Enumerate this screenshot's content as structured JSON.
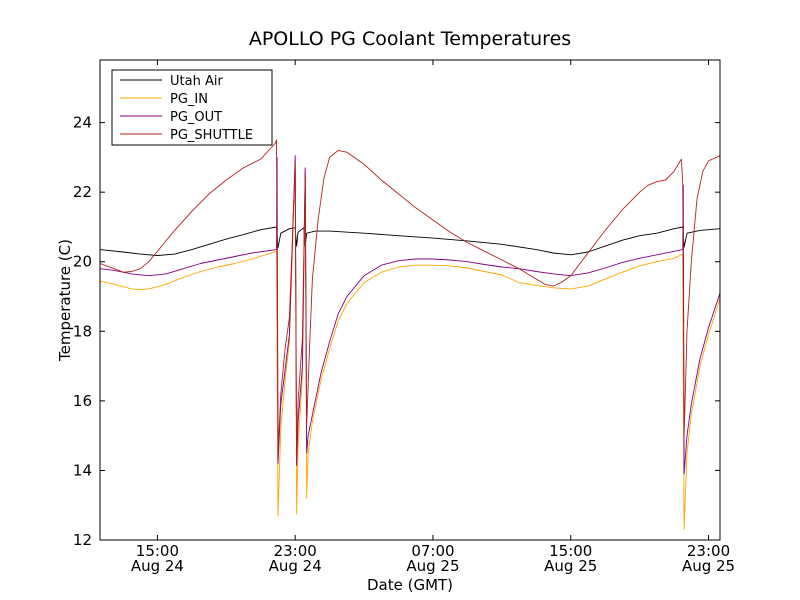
{
  "chart_data": {
    "type": "line",
    "title": "APOLLO PG Coolant Temperatures",
    "xlabel": "Date (GMT)",
    "ylabel": "Temperature (C)",
    "x_unit": "datetime",
    "xlim": [
      "2014-08-24T11:40",
      "2014-08-25T23:40"
    ],
    "ylim": [
      12,
      25.8
    ],
    "yticks": [
      12,
      14,
      16,
      18,
      20,
      22,
      24
    ],
    "xticks": [
      {
        "x": "2014-08-24T15:00",
        "line1": "15:00",
        "line2": "Aug 24"
      },
      {
        "x": "2014-08-24T23:00",
        "line1": "23:00",
        "line2": "Aug 24"
      },
      {
        "x": "2014-08-25T07:00",
        "line1": "07:00",
        "line2": "Aug 25"
      },
      {
        "x": "2014-08-25T15:00",
        "line1": "15:00",
        "line2": "Aug 25"
      },
      {
        "x": "2014-08-25T23:00",
        "line1": "23:00",
        "line2": "Aug 25"
      }
    ],
    "grid": false,
    "legend": "top-left",
    "series": [
      {
        "name": "Utah Air",
        "color": "#000000",
        "points": [
          [
            "2014-08-24T11:40",
            20.35
          ],
          [
            "2014-08-24T13:00",
            20.28
          ],
          [
            "2014-08-24T14:00",
            20.22
          ],
          [
            "2014-08-24T15:00",
            20.18
          ],
          [
            "2014-08-24T16:00",
            20.22
          ],
          [
            "2014-08-24T17:00",
            20.35
          ],
          [
            "2014-08-24T18:00",
            20.5
          ],
          [
            "2014-08-24T19:00",
            20.65
          ],
          [
            "2014-08-24T20:00",
            20.78
          ],
          [
            "2014-08-24T21:00",
            20.92
          ],
          [
            "2014-08-24T21:55",
            21.0
          ],
          [
            "2014-08-24T22:00",
            20.4
          ],
          [
            "2014-08-24T22:10",
            20.82
          ],
          [
            "2014-08-24T22:40",
            20.95
          ],
          [
            "2014-08-24T23:00",
            20.98
          ],
          [
            "2014-08-24T23:05",
            20.45
          ],
          [
            "2014-08-24T23:10",
            20.85
          ],
          [
            "2014-08-24T23:30",
            20.98
          ],
          [
            "2014-08-24T23:35",
            20.45
          ],
          [
            "2014-08-24T23:40",
            20.82
          ],
          [
            "2014-08-25T00:10",
            20.88
          ],
          [
            "2014-08-25T01:00",
            20.88
          ],
          [
            "2014-08-25T03:00",
            20.82
          ],
          [
            "2014-08-25T05:00",
            20.75
          ],
          [
            "2014-08-25T07:00",
            20.68
          ],
          [
            "2014-08-25T09:00",
            20.6
          ],
          [
            "2014-08-25T11:00",
            20.5
          ],
          [
            "2014-08-25T13:00",
            20.35
          ],
          [
            "2014-08-25T14:00",
            20.25
          ],
          [
            "2014-08-25T15:00",
            20.2
          ],
          [
            "2014-08-25T16:00",
            20.28
          ],
          [
            "2014-08-25T17:00",
            20.45
          ],
          [
            "2014-08-25T18:00",
            20.62
          ],
          [
            "2014-08-25T19:00",
            20.75
          ],
          [
            "2014-08-25T20:00",
            20.82
          ],
          [
            "2014-08-25T21:00",
            20.95
          ],
          [
            "2014-08-25T21:30",
            21.0
          ],
          [
            "2014-08-25T21:35",
            20.42
          ],
          [
            "2014-08-25T21:45",
            20.82
          ],
          [
            "2014-08-25T22:30",
            20.9
          ],
          [
            "2014-08-25T23:40",
            20.95
          ]
        ]
      },
      {
        "name": "PG_IN",
        "color": "#ffa500",
        "points": [
          [
            "2014-08-24T11:40",
            19.45
          ],
          [
            "2014-08-24T12:30",
            19.35
          ],
          [
            "2014-08-24T13:30",
            19.22
          ],
          [
            "2014-08-24T14:00",
            19.2
          ],
          [
            "2014-08-24T14:30",
            19.22
          ],
          [
            "2014-08-24T15:30",
            19.35
          ],
          [
            "2014-08-24T16:30",
            19.55
          ],
          [
            "2014-08-24T17:30",
            19.72
          ],
          [
            "2014-08-24T18:30",
            19.85
          ],
          [
            "2014-08-24T19:30",
            19.95
          ],
          [
            "2014-08-24T20:30",
            20.08
          ],
          [
            "2014-08-24T21:55",
            20.3
          ],
          [
            "2014-08-24T22:00",
            12.7
          ],
          [
            "2014-08-24T22:10",
            15.2
          ],
          [
            "2014-08-24T22:25",
            16.6
          ],
          [
            "2014-08-24T22:40",
            17.7
          ],
          [
            "2014-08-24T23:00",
            22.9
          ],
          [
            "2014-08-24T23:05",
            12.75
          ],
          [
            "2014-08-24T23:10",
            14.7
          ],
          [
            "2014-08-24T23:25",
            16.7
          ],
          [
            "2014-08-24T23:35",
            22.6
          ],
          [
            "2014-08-24T23:40",
            13.2
          ],
          [
            "2014-08-24T23:45",
            14.5
          ],
          [
            "2014-08-25T00:00",
            15.4
          ],
          [
            "2014-08-25T00:30",
            16.6
          ],
          [
            "2014-08-25T01:00",
            17.5
          ],
          [
            "2014-08-25T01:30",
            18.3
          ],
          [
            "2014-08-25T02:00",
            18.8
          ],
          [
            "2014-08-25T03:00",
            19.4
          ],
          [
            "2014-08-25T04:00",
            19.7
          ],
          [
            "2014-08-25T05:00",
            19.85
          ],
          [
            "2014-08-25T06:00",
            19.9
          ],
          [
            "2014-08-25T07:00",
            19.9
          ],
          [
            "2014-08-25T08:00",
            19.88
          ],
          [
            "2014-08-25T09:00",
            19.82
          ],
          [
            "2014-08-25T10:00",
            19.72
          ],
          [
            "2014-08-25T11:00",
            19.62
          ],
          [
            "2014-08-25T12:00",
            19.4
          ],
          [
            "2014-08-25T13:00",
            19.32
          ],
          [
            "2014-08-25T14:00",
            19.25
          ],
          [
            "2014-08-25T15:00",
            19.22
          ],
          [
            "2014-08-25T16:00",
            19.3
          ],
          [
            "2014-08-25T17:00",
            19.5
          ],
          [
            "2014-08-25T18:00",
            19.7
          ],
          [
            "2014-08-25T19:00",
            19.88
          ],
          [
            "2014-08-25T20:00",
            20.0
          ],
          [
            "2014-08-25T21:00",
            20.1
          ],
          [
            "2014-08-25T21:30",
            20.22
          ],
          [
            "2014-08-25T21:35",
            12.3
          ],
          [
            "2014-08-25T21:45",
            14.5
          ],
          [
            "2014-08-25T22:00",
            15.6
          ],
          [
            "2014-08-25T22:30",
            17.0
          ],
          [
            "2014-08-25T23:00",
            17.9
          ],
          [
            "2014-08-25T23:40",
            18.95
          ]
        ]
      },
      {
        "name": "PG_OUT",
        "color": "#800080",
        "points": [
          [
            "2014-08-24T11:40",
            19.8
          ],
          [
            "2014-08-24T12:30",
            19.75
          ],
          [
            "2014-08-24T13:30",
            19.65
          ],
          [
            "2014-08-24T14:30",
            19.6
          ],
          [
            "2014-08-24T15:30",
            19.65
          ],
          [
            "2014-08-24T16:30",
            19.8
          ],
          [
            "2014-08-24T17:30",
            19.95
          ],
          [
            "2014-08-24T18:30",
            20.05
          ],
          [
            "2014-08-24T19:30",
            20.15
          ],
          [
            "2014-08-24T20:30",
            20.25
          ],
          [
            "2014-08-24T21:55",
            20.35
          ],
          [
            "2014-08-24T21:57",
            23.0
          ],
          [
            "2014-08-24T22:00",
            14.2
          ],
          [
            "2014-08-24T22:10",
            15.9
          ],
          [
            "2014-08-24T22:25",
            16.9
          ],
          [
            "2014-08-24T22:40",
            17.9
          ],
          [
            "2014-08-24T23:00",
            23.05
          ],
          [
            "2014-08-24T23:05",
            14.15
          ],
          [
            "2014-08-24T23:10",
            15.4
          ],
          [
            "2014-08-24T23:25",
            17.0
          ],
          [
            "2014-08-24T23:35",
            22.7
          ],
          [
            "2014-08-24T23:40",
            14.5
          ],
          [
            "2014-08-24T23:45",
            15.0
          ],
          [
            "2014-08-25T00:00",
            15.6
          ],
          [
            "2014-08-25T00:30",
            16.8
          ],
          [
            "2014-08-25T01:00",
            17.7
          ],
          [
            "2014-08-25T01:30",
            18.5
          ],
          [
            "2014-08-25T02:00",
            19.0
          ],
          [
            "2014-08-25T03:00",
            19.6
          ],
          [
            "2014-08-25T04:00",
            19.9
          ],
          [
            "2014-08-25T05:00",
            20.03
          ],
          [
            "2014-08-25T06:00",
            20.08
          ],
          [
            "2014-08-25T07:00",
            20.08
          ],
          [
            "2014-08-25T08:00",
            20.05
          ],
          [
            "2014-08-25T09:00",
            20.0
          ],
          [
            "2014-08-25T10:00",
            19.92
          ],
          [
            "2014-08-25T11:00",
            19.85
          ],
          [
            "2014-08-25T12:00",
            19.8
          ],
          [
            "2014-08-25T13:00",
            19.72
          ],
          [
            "2014-08-25T14:00",
            19.65
          ],
          [
            "2014-08-25T15:00",
            19.6
          ],
          [
            "2014-08-25T16:00",
            19.68
          ],
          [
            "2014-08-25T17:00",
            19.82
          ],
          [
            "2014-08-25T18:00",
            19.98
          ],
          [
            "2014-08-25T19:00",
            20.1
          ],
          [
            "2014-08-25T20:00",
            20.2
          ],
          [
            "2014-08-25T21:00",
            20.3
          ],
          [
            "2014-08-25T21:30",
            20.35
          ],
          [
            "2014-08-25T21:32",
            22.2
          ],
          [
            "2014-08-25T21:35",
            13.9
          ],
          [
            "2014-08-25T21:45",
            15.0
          ],
          [
            "2014-08-25T22:00",
            15.9
          ],
          [
            "2014-08-25T22:30",
            17.2
          ],
          [
            "2014-08-25T23:00",
            18.1
          ],
          [
            "2014-08-25T23:40",
            19.1
          ]
        ]
      },
      {
        "name": "PG_SHUTTLE",
        "color": "#b22222",
        "points": [
          [
            "2014-08-24T11:40",
            19.95
          ],
          [
            "2014-08-24T12:30",
            19.8
          ],
          [
            "2014-08-24T13:00",
            19.7
          ],
          [
            "2014-08-24T13:30",
            19.72
          ],
          [
            "2014-08-24T14:00",
            19.8
          ],
          [
            "2014-08-24T14:30",
            20.0
          ],
          [
            "2014-08-24T15:00",
            20.3
          ],
          [
            "2014-08-24T16:00",
            20.9
          ],
          [
            "2014-08-24T17:00",
            21.45
          ],
          [
            "2014-08-24T18:00",
            21.95
          ],
          [
            "2014-08-24T19:00",
            22.35
          ],
          [
            "2014-08-24T20:00",
            22.7
          ],
          [
            "2014-08-24T21:00",
            22.95
          ],
          [
            "2014-08-24T21:50",
            23.4
          ],
          [
            "2014-08-24T21:55",
            23.5
          ],
          [
            "2014-08-24T22:00",
            14.5
          ],
          [
            "2014-08-24T22:10",
            16.2
          ],
          [
            "2014-08-24T22:25",
            17.5
          ],
          [
            "2014-08-24T22:40",
            18.4
          ],
          [
            "2014-08-24T23:00",
            22.8
          ],
          [
            "2014-08-24T23:05",
            14.4
          ],
          [
            "2014-08-24T23:10",
            16.0
          ],
          [
            "2014-08-24T23:25",
            17.8
          ],
          [
            "2014-08-24T23:35",
            22.5
          ],
          [
            "2014-08-24T23:40",
            15.3
          ],
          [
            "2014-08-24T23:50",
            17.5
          ],
          [
            "2014-08-25T00:00",
            19.5
          ],
          [
            "2014-08-25T00:20",
            21.2
          ],
          [
            "2014-08-25T00:40",
            22.4
          ],
          [
            "2014-08-25T01:00",
            23.0
          ],
          [
            "2014-08-25T01:30",
            23.2
          ],
          [
            "2014-08-25T02:00",
            23.15
          ],
          [
            "2014-08-25T03:00",
            22.8
          ],
          [
            "2014-08-25T04:00",
            22.35
          ],
          [
            "2014-08-25T05:00",
            21.95
          ],
          [
            "2014-08-25T06:00",
            21.55
          ],
          [
            "2014-08-25T07:00",
            21.2
          ],
          [
            "2014-08-25T08:00",
            20.85
          ],
          [
            "2014-08-25T09:00",
            20.55
          ],
          [
            "2014-08-25T10:00",
            20.3
          ],
          [
            "2014-08-25T11:00",
            20.05
          ],
          [
            "2014-08-25T12:00",
            19.8
          ],
          [
            "2014-08-25T13:00",
            19.5
          ],
          [
            "2014-08-25T13:30",
            19.35
          ],
          [
            "2014-08-25T14:00",
            19.3
          ],
          [
            "2014-08-25T14:30",
            19.42
          ],
          [
            "2014-08-25T15:00",
            19.6
          ],
          [
            "2014-08-25T16:00",
            20.25
          ],
          [
            "2014-08-25T17:00",
            20.9
          ],
          [
            "2014-08-25T18:00",
            21.5
          ],
          [
            "2014-08-25T19:00",
            22.0
          ],
          [
            "2014-08-25T19:30",
            22.2
          ],
          [
            "2014-08-25T20:00",
            22.3
          ],
          [
            "2014-08-25T20:30",
            22.35
          ],
          [
            "2014-08-25T21:00",
            22.6
          ],
          [
            "2014-08-25T21:25",
            22.95
          ],
          [
            "2014-08-25T21:30",
            22.3
          ],
          [
            "2014-08-25T21:35",
            15.0
          ],
          [
            "2014-08-25T21:45",
            18.0
          ],
          [
            "2014-08-25T22:00",
            20.0
          ],
          [
            "2014-08-25T22:20",
            21.8
          ],
          [
            "2014-08-25T22:40",
            22.6
          ],
          [
            "2014-08-25T23:00",
            22.9
          ],
          [
            "2014-08-25T23:40",
            23.05
          ]
        ]
      }
    ]
  }
}
